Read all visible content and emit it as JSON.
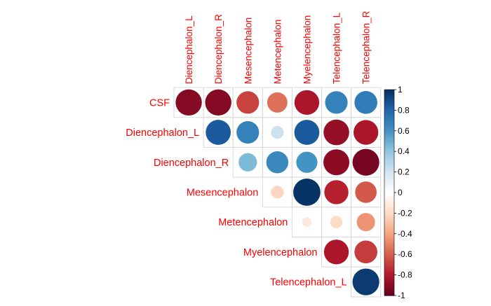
{
  "chart_data": {
    "type": "correlation-matrix",
    "layout": "upper-triangle",
    "method": "circle",
    "labels_top": [
      "Diencephalon_L",
      "Diencephalon_R",
      "Mesencephalon",
      "Metencephalon",
      "Myelencephalon",
      "Telencephalon_L",
      "Telencephalon_R"
    ],
    "labels_left": [
      "CSF",
      "Diencephalon_L",
      "Diencephalon_R",
      "Mesencephalon",
      "Metencephalon",
      "Myelencephalon",
      "Telencephalon_L"
    ],
    "label_color": "#FF0000",
    "values": [
      [
        -0.92,
        -0.92,
        -0.68,
        -0.55,
        -0.82,
        0.68,
        0.7
      ],
      [
        null,
        0.84,
        0.68,
        0.22,
        0.84,
        -0.88,
        -0.82
      ],
      [
        null,
        null,
        0.45,
        0.65,
        0.6,
        -0.9,
        -0.96
      ],
      [
        null,
        null,
        null,
        -0.22,
        0.99,
        -0.78,
        -0.62
      ],
      [
        null,
        null,
        null,
        null,
        -0.12,
        -0.2,
        -0.45
      ],
      [
        null,
        null,
        null,
        null,
        null,
        -0.82,
        -0.7
      ],
      [
        null,
        null,
        null,
        null,
        null,
        null,
        0.96
      ]
    ],
    "colorbar": {
      "ticks": [
        "1",
        "0.8",
        "0.6",
        "0.4",
        "0.2",
        "0",
        "-0.2",
        "-0.4",
        "-0.6",
        "-0.8",
        "-1"
      ],
      "range": [
        -1,
        1
      ],
      "low_color": "#67001F",
      "mid_color": "#FFFFFF",
      "high_color": "#053061"
    }
  }
}
